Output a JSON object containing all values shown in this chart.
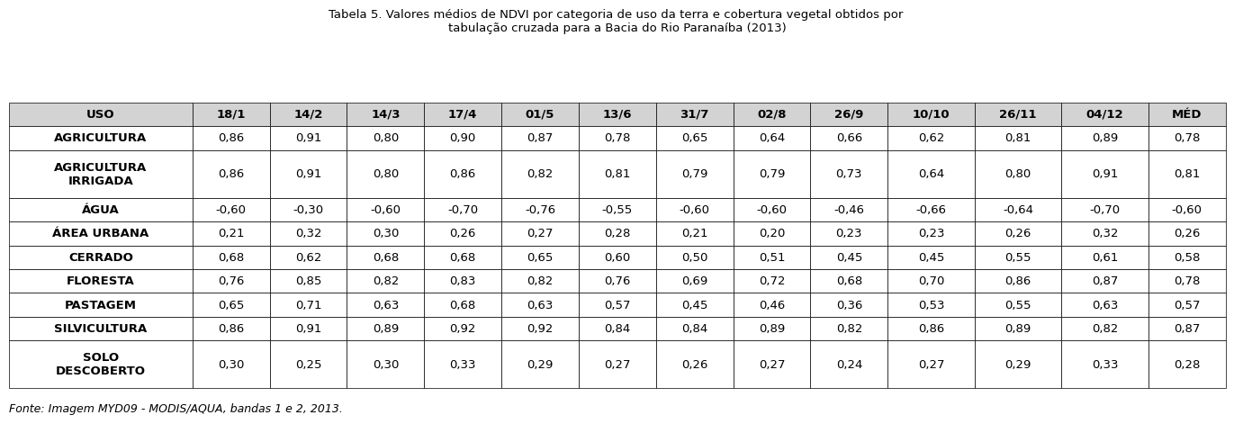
{
  "title": "Tabela 5. Valores médios de NDVI por categoria de uso da terra e cobertura vegetal obtidos por \ntabulação cruzada para a Bacia do Rio Paranaíba (2013)",
  "footer": "Fonte: Imagem MYD09 - MODIS/AQUA, bandas 1 e 2, 2013.",
  "columns": [
    "USO",
    "18/1",
    "14/2",
    "14/3",
    "17/4",
    "01/5",
    "13/6",
    "31/7",
    "02/8",
    "26/9",
    "10/10",
    "26/11",
    "04/12",
    "MÉD"
  ],
  "rows": [
    [
      "AGRICULTURA",
      "0,86",
      "0,91",
      "0,80",
      "0,90",
      "0,87",
      "0,78",
      "0,65",
      "0,64",
      "0,66",
      "0,62",
      "0,81",
      "0,89",
      "0,78"
    ],
    [
      "AGRICULTURA\nIRRIGADA",
      "0,86",
      "0,91",
      "0,80",
      "0,86",
      "0,82",
      "0,81",
      "0,79",
      "0,79",
      "0,73",
      "0,64",
      "0,80",
      "0,91",
      "0,81"
    ],
    [
      "ÁGUA",
      "-0,60",
      "-0,30",
      "-0,60",
      "-0,70",
      "-0,76",
      "-0,55",
      "-0,60",
      "-0,60",
      "-0,46",
      "-0,66",
      "-0,64",
      "-0,70",
      "-0,60"
    ],
    [
      "ÁREA URBANA",
      "0,21",
      "0,32",
      "0,30",
      "0,26",
      "0,27",
      "0,28",
      "0,21",
      "0,20",
      "0,23",
      "0,23",
      "0,26",
      "0,32",
      "0,26"
    ],
    [
      "CERRADO",
      "0,68",
      "0,62",
      "0,68",
      "0,68",
      "0,65",
      "0,60",
      "0,50",
      "0,51",
      "0,45",
      "0,45",
      "0,55",
      "0,61",
      "0,58"
    ],
    [
      "FLORESTA",
      "0,76",
      "0,85",
      "0,82",
      "0,83",
      "0,82",
      "0,76",
      "0,69",
      "0,72",
      "0,68",
      "0,70",
      "0,86",
      "0,87",
      "0,78"
    ],
    [
      "PASTAGEM",
      "0,65",
      "0,71",
      "0,63",
      "0,68",
      "0,63",
      "0,57",
      "0,45",
      "0,46",
      "0,36",
      "0,53",
      "0,55",
      "0,63",
      "0,57"
    ],
    [
      "SILVICULTURA",
      "0,86",
      "0,91",
      "0,89",
      "0,92",
      "0,92",
      "0,84",
      "0,84",
      "0,89",
      "0,82",
      "0,86",
      "0,89",
      "0,82",
      "0,87"
    ],
    [
      "SOLO\nDESCOBERTO",
      "0,30",
      "0,25",
      "0,30",
      "0,33",
      "0,29",
      "0,27",
      "0,26",
      "0,27",
      "0,24",
      "0,27",
      "0,29",
      "0,33",
      "0,28"
    ]
  ],
  "col_widths_rel": [
    1.9,
    0.8,
    0.8,
    0.8,
    0.8,
    0.8,
    0.8,
    0.8,
    0.8,
    0.8,
    0.9,
    0.9,
    0.9,
    0.8
  ],
  "header_bg": "#d3d3d3",
  "row_bg": "#ffffff",
  "border_color": "#000000",
  "text_color": "#000000",
  "title_fontsize": 9.5,
  "header_fontsize": 9.5,
  "cell_fontsize": 9.5,
  "footer_fontsize": 9
}
